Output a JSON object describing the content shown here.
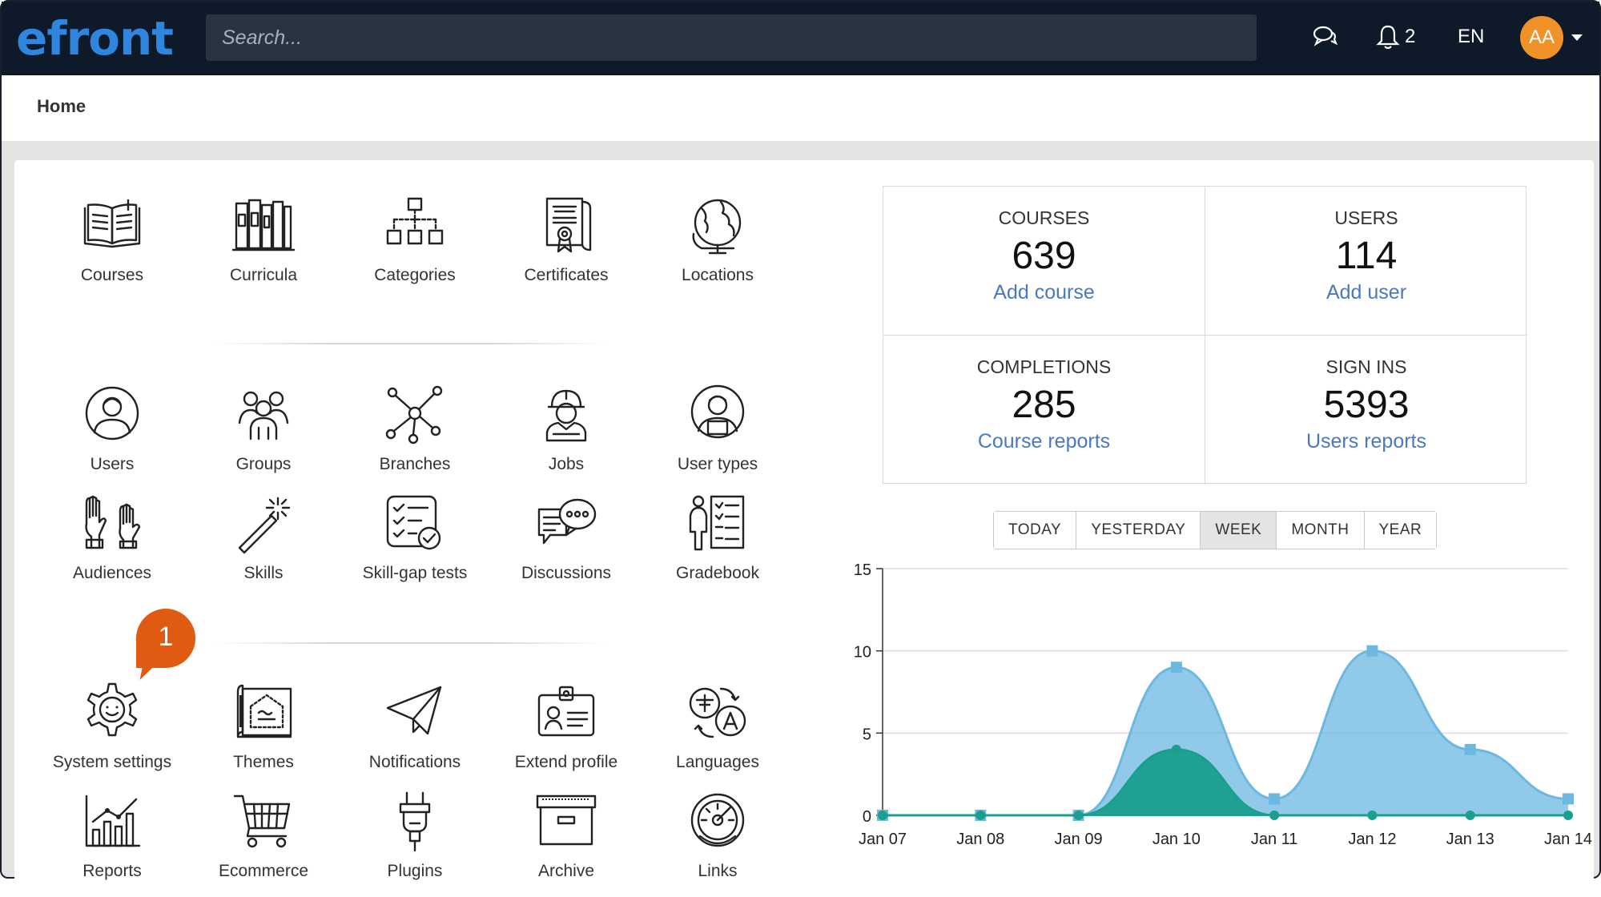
{
  "header": {
    "logo_text": "efront",
    "search_placeholder": "Search...",
    "notification_count": "2",
    "language": "EN",
    "avatar_initials": "AA"
  },
  "breadcrumb": {
    "current": "Home"
  },
  "tiles": [
    {
      "label": "Courses",
      "icon": "book-icon"
    },
    {
      "label": "Curricula",
      "icon": "bookshelf-icon"
    },
    {
      "label": "Categories",
      "icon": "hierarchy-icon"
    },
    {
      "label": "Certificates",
      "icon": "certificate-icon"
    },
    {
      "label": "Locations",
      "icon": "globe-icon"
    },
    {
      "label": "Users",
      "icon": "user-icon"
    },
    {
      "label": "Groups",
      "icon": "group-icon"
    },
    {
      "label": "Branches",
      "icon": "network-icon"
    },
    {
      "label": "Jobs",
      "icon": "worker-icon"
    },
    {
      "label": "User types",
      "icon": "user-type-icon"
    },
    {
      "label": "Audiences",
      "icon": "raised-hands-icon"
    },
    {
      "label": "Skills",
      "icon": "magic-wand-icon"
    },
    {
      "label": "Skill-gap tests",
      "icon": "checklist-icon"
    },
    {
      "label": "Discussions",
      "icon": "chat-bubbles-icon"
    },
    {
      "label": "Gradebook",
      "icon": "gradebook-icon"
    },
    {
      "label": "System settings",
      "icon": "gear-icon"
    },
    {
      "label": "Themes",
      "icon": "blueprint-icon"
    },
    {
      "label": "Notifications",
      "icon": "paper-plane-icon"
    },
    {
      "label": "Extend profile",
      "icon": "id-card-icon"
    },
    {
      "label": "Languages",
      "icon": "translate-icon"
    },
    {
      "label": "Reports",
      "icon": "chart-icon"
    },
    {
      "label": "Ecommerce",
      "icon": "cart-icon"
    },
    {
      "label": "Plugins",
      "icon": "plug-icon"
    },
    {
      "label": "Archive",
      "icon": "archive-box-icon"
    },
    {
      "label": "Links",
      "icon": "dashboard-icon"
    }
  ],
  "callout_number": "1",
  "stats": [
    {
      "title": "COURSES",
      "value": "639",
      "action": "Add course"
    },
    {
      "title": "USERS",
      "value": "114",
      "action": "Add user"
    },
    {
      "title": "COMPLETIONS",
      "value": "285",
      "action": "Course reports"
    },
    {
      "title": "SIGN INS",
      "value": "5393",
      "action": "Users reports"
    }
  ],
  "periods": [
    "TODAY",
    "YESTERDAY",
    "WEEK",
    "MONTH",
    "YEAR"
  ],
  "active_period": "WEEK",
  "chart_data": {
    "type": "area",
    "categories": [
      "Jan 07",
      "Jan 08",
      "Jan 09",
      "Jan 10",
      "Jan 11",
      "Jan 12",
      "Jan 13",
      "Jan 14"
    ],
    "series": [
      {
        "color": "#6cb8e0",
        "values": [
          0,
          0,
          0,
          9,
          1,
          10,
          4,
          1
        ]
      },
      {
        "color": "#1a9e8e",
        "values": [
          0,
          0,
          0,
          4,
          0,
          0,
          0,
          0
        ]
      }
    ],
    "ylim": [
      0,
      15
    ],
    "yticks": [
      "0",
      "5",
      "10",
      "15"
    ],
    "grid": true
  }
}
